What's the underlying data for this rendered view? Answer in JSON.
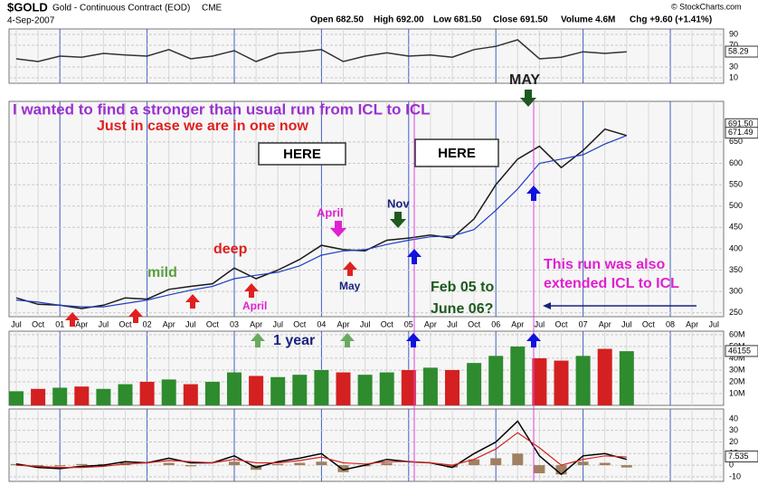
{
  "header": {
    "symbol": "$GOLD",
    "name": "Gold - Continuous Contract (EOD)",
    "exchange": "CME",
    "date": "4-Sep-2007",
    "quote": [
      "Open 682.50",
      "High 692.00",
      "Low 681.50",
      "Close 691.50",
      "Volume 4.6M",
      "Chg +9.60 (+1.41%)"
    ],
    "credit": "© StockCharts.com"
  },
  "chart_data": [
    {
      "type": "line",
      "categories": [
        "Jul",
        "Oct",
        "01",
        "Apr",
        "Jul",
        "Oct",
        "02",
        "Apr",
        "Jul",
        "Oct",
        "03",
        "Apr",
        "Jul",
        "Oct",
        "04",
        "Apr",
        "Jul",
        "Oct",
        "05",
        "Apr",
        "Jul",
        "Oct",
        "06",
        "Apr",
        "Jul",
        "Oct",
        "07",
        "Apr",
        "Jul",
        "Oct",
        "08",
        "Apr",
        "Jul"
      ],
      "series": [
        {
          "name": "RSI",
          "color": "#333333",
          "values": [
            45,
            40,
            50,
            48,
            55,
            52,
            50,
            62,
            45,
            50,
            60,
            40,
            55,
            58,
            62,
            40,
            50,
            56,
            50,
            52,
            48,
            62,
            68,
            80,
            45,
            48,
            58,
            55,
            58,
            null,
            null,
            null,
            null
          ]
        }
      ],
      "ylim": [
        0,
        100
      ],
      "yticks": [
        10,
        30,
        70,
        90
      ],
      "last_labels": [
        {
          "value": 58.29,
          "label": "58.29"
        }
      ]
    },
    {
      "type": "line",
      "categories": [
        "Jul",
        "Oct",
        "01",
        "Apr",
        "Jul",
        "Oct",
        "02",
        "Apr",
        "Jul",
        "Oct",
        "03",
        "Apr",
        "Jul",
        "Oct",
        "04",
        "Apr",
        "Jul",
        "Oct",
        "05",
        "Apr",
        "Jul",
        "Oct",
        "06",
        "Apr",
        "Jul",
        "Oct",
        "07",
        "Apr",
        "Jul",
        "Oct",
        "08",
        "Apr",
        "Jul"
      ],
      "series": [
        {
          "name": "Price",
          "color": "#1a1a1a",
          "values": [
            285,
            270,
            268,
            260,
            268,
            285,
            282,
            305,
            312,
            318,
            355,
            330,
            350,
            375,
            408,
            398,
            395,
            420,
            425,
            432,
            425,
            470,
            550,
            610,
            640,
            590,
            630,
            680,
            665,
            null,
            null,
            null,
            null
          ]
        },
        {
          "name": "Moving Average",
          "color": "#1f3fbf",
          "values": [
            280,
            275,
            268,
            264,
            264,
            272,
            280,
            292,
            303,
            312,
            330,
            338,
            345,
            360,
            385,
            395,
            398,
            410,
            420,
            428,
            430,
            445,
            490,
            540,
            600,
            610,
            620,
            645,
            665,
            null,
            null,
            null,
            null
          ]
        }
      ],
      "ylim": [
        241,
        745
      ],
      "yticks": [
        250,
        300,
        350,
        400,
        450,
        500,
        550,
        600,
        650
      ],
      "last_labels": [
        {
          "value": 691.5,
          "label": "691.50"
        },
        {
          "value": 671.49,
          "label": "671.49"
        }
      ],
      "annotations": [
        "I wanted to find a stronger than usual run from ICL to ICL",
        "Just in case we are in one now",
        "HERE",
        "HERE",
        "MAY",
        "mild",
        "deep",
        "April",
        "Nov",
        "April",
        "May",
        "Feb 05 to",
        "June 06?",
        "This run was also",
        "extended ICL to ICL",
        "1 year"
      ]
    },
    {
      "type": "bar",
      "categories": [
        "Jul",
        "Oct",
        "01",
        "Apr",
        "Jul",
        "Oct",
        "02",
        "Apr",
        "Jul",
        "Oct",
        "03",
        "Apr",
        "Jul",
        "Oct",
        "04",
        "Apr",
        "Jul",
        "Oct",
        "05",
        "Apr",
        "Jul",
        "Oct",
        "06",
        "Apr",
        "Jul",
        "Oct",
        "07",
        "Apr",
        "Jul",
        "Oct",
        "08",
        "Apr",
        "Jul"
      ],
      "values": [
        12,
        14,
        15,
        16,
        14,
        18,
        20,
        22,
        18,
        20,
        28,
        25,
        24,
        26,
        30,
        28,
        26,
        28,
        30,
        32,
        30,
        36,
        42,
        50,
        40,
        38,
        42,
        48,
        46,
        null,
        null,
        null,
        null
      ],
      "colors": [
        "#2e8b2e",
        "#d42020",
        "#2e8b2e",
        "#d42020",
        "#2e8b2e",
        "#2e8b2e",
        "#d42020",
        "#2e8b2e",
        "#d42020",
        "#2e8b2e",
        "#2e8b2e",
        "#d42020",
        "#2e8b2e",
        "#2e8b2e",
        "#2e8b2e",
        "#d42020",
        "#2e8b2e",
        "#2e8b2e",
        "#d42020",
        "#2e8b2e",
        "#d42020",
        "#2e8b2e",
        "#2e8b2e",
        "#2e8b2e",
        "#d42020",
        "#d42020",
        "#2e8b2e",
        "#d42020",
        "#2e8b2e",
        null,
        null,
        null,
        null
      ],
      "ylim": [
        0,
        63
      ],
      "yticks": [
        {
          "value": 10,
          "label": "10M"
        },
        {
          "value": 20,
          "label": "20M"
        },
        {
          "value": 30,
          "label": "30M"
        },
        {
          "value": 40,
          "label": "40M"
        },
        {
          "value": 50,
          "label": "50M"
        },
        {
          "value": 60,
          "label": "60M"
        }
      ],
      "last_labels": [
        {
          "value": 46.155,
          "label": "46155"
        }
      ]
    },
    {
      "type": "line",
      "categories": [
        "Jul",
        "Oct",
        "01",
        "Apr",
        "Jul",
        "Oct",
        "02",
        "Apr",
        "Jul",
        "Oct",
        "03",
        "Apr",
        "Jul",
        "Oct",
        "04",
        "Apr",
        "Jul",
        "Oct",
        "05",
        "Apr",
        "Jul",
        "Oct",
        "06",
        "Apr",
        "Jul",
        "Oct",
        "07",
        "Apr",
        "Jul",
        "Oct",
        "08",
        "Apr",
        "Jul"
      ],
      "series": [
        {
          "name": "MACD",
          "color": "#000000",
          "values": [
            1,
            -2,
            -3,
            -1,
            0,
            3,
            2,
            6,
            2,
            2,
            8,
            -2,
            3,
            6,
            10,
            -4,
            0,
            5,
            3,
            2,
            -2,
            10,
            20,
            38,
            8,
            -8,
            8,
            10,
            5,
            null,
            null,
            null,
            null
          ]
        },
        {
          "name": "Signal",
          "color": "#d42020",
          "values": [
            0,
            -1,
            -2,
            -2,
            -1,
            1,
            2,
            4,
            3,
            2,
            5,
            2,
            2,
            4,
            7,
            2,
            1,
            3,
            3,
            2,
            0,
            5,
            14,
            28,
            15,
            0,
            5,
            8,
            7,
            null,
            null,
            null,
            null
          ]
        }
      ],
      "histogram": {
        "color": "#a08060",
        "values": [
          1,
          -1,
          -1,
          1,
          1,
          2,
          0,
          2,
          -1,
          0,
          3,
          -4,
          1,
          2,
          3,
          -6,
          -1,
          2,
          0,
          0,
          -2,
          5,
          6,
          10,
          -7,
          -8,
          3,
          2,
          -2,
          null,
          null,
          null,
          null
        ]
      },
      "ylim": [
        -14,
        48.5
      ],
      "yticks": [
        -10,
        0,
        10,
        20,
        30,
        40
      ],
      "last_labels": [
        {
          "value": 7.535,
          "label": "7.535"
        }
      ]
    }
  ]
}
